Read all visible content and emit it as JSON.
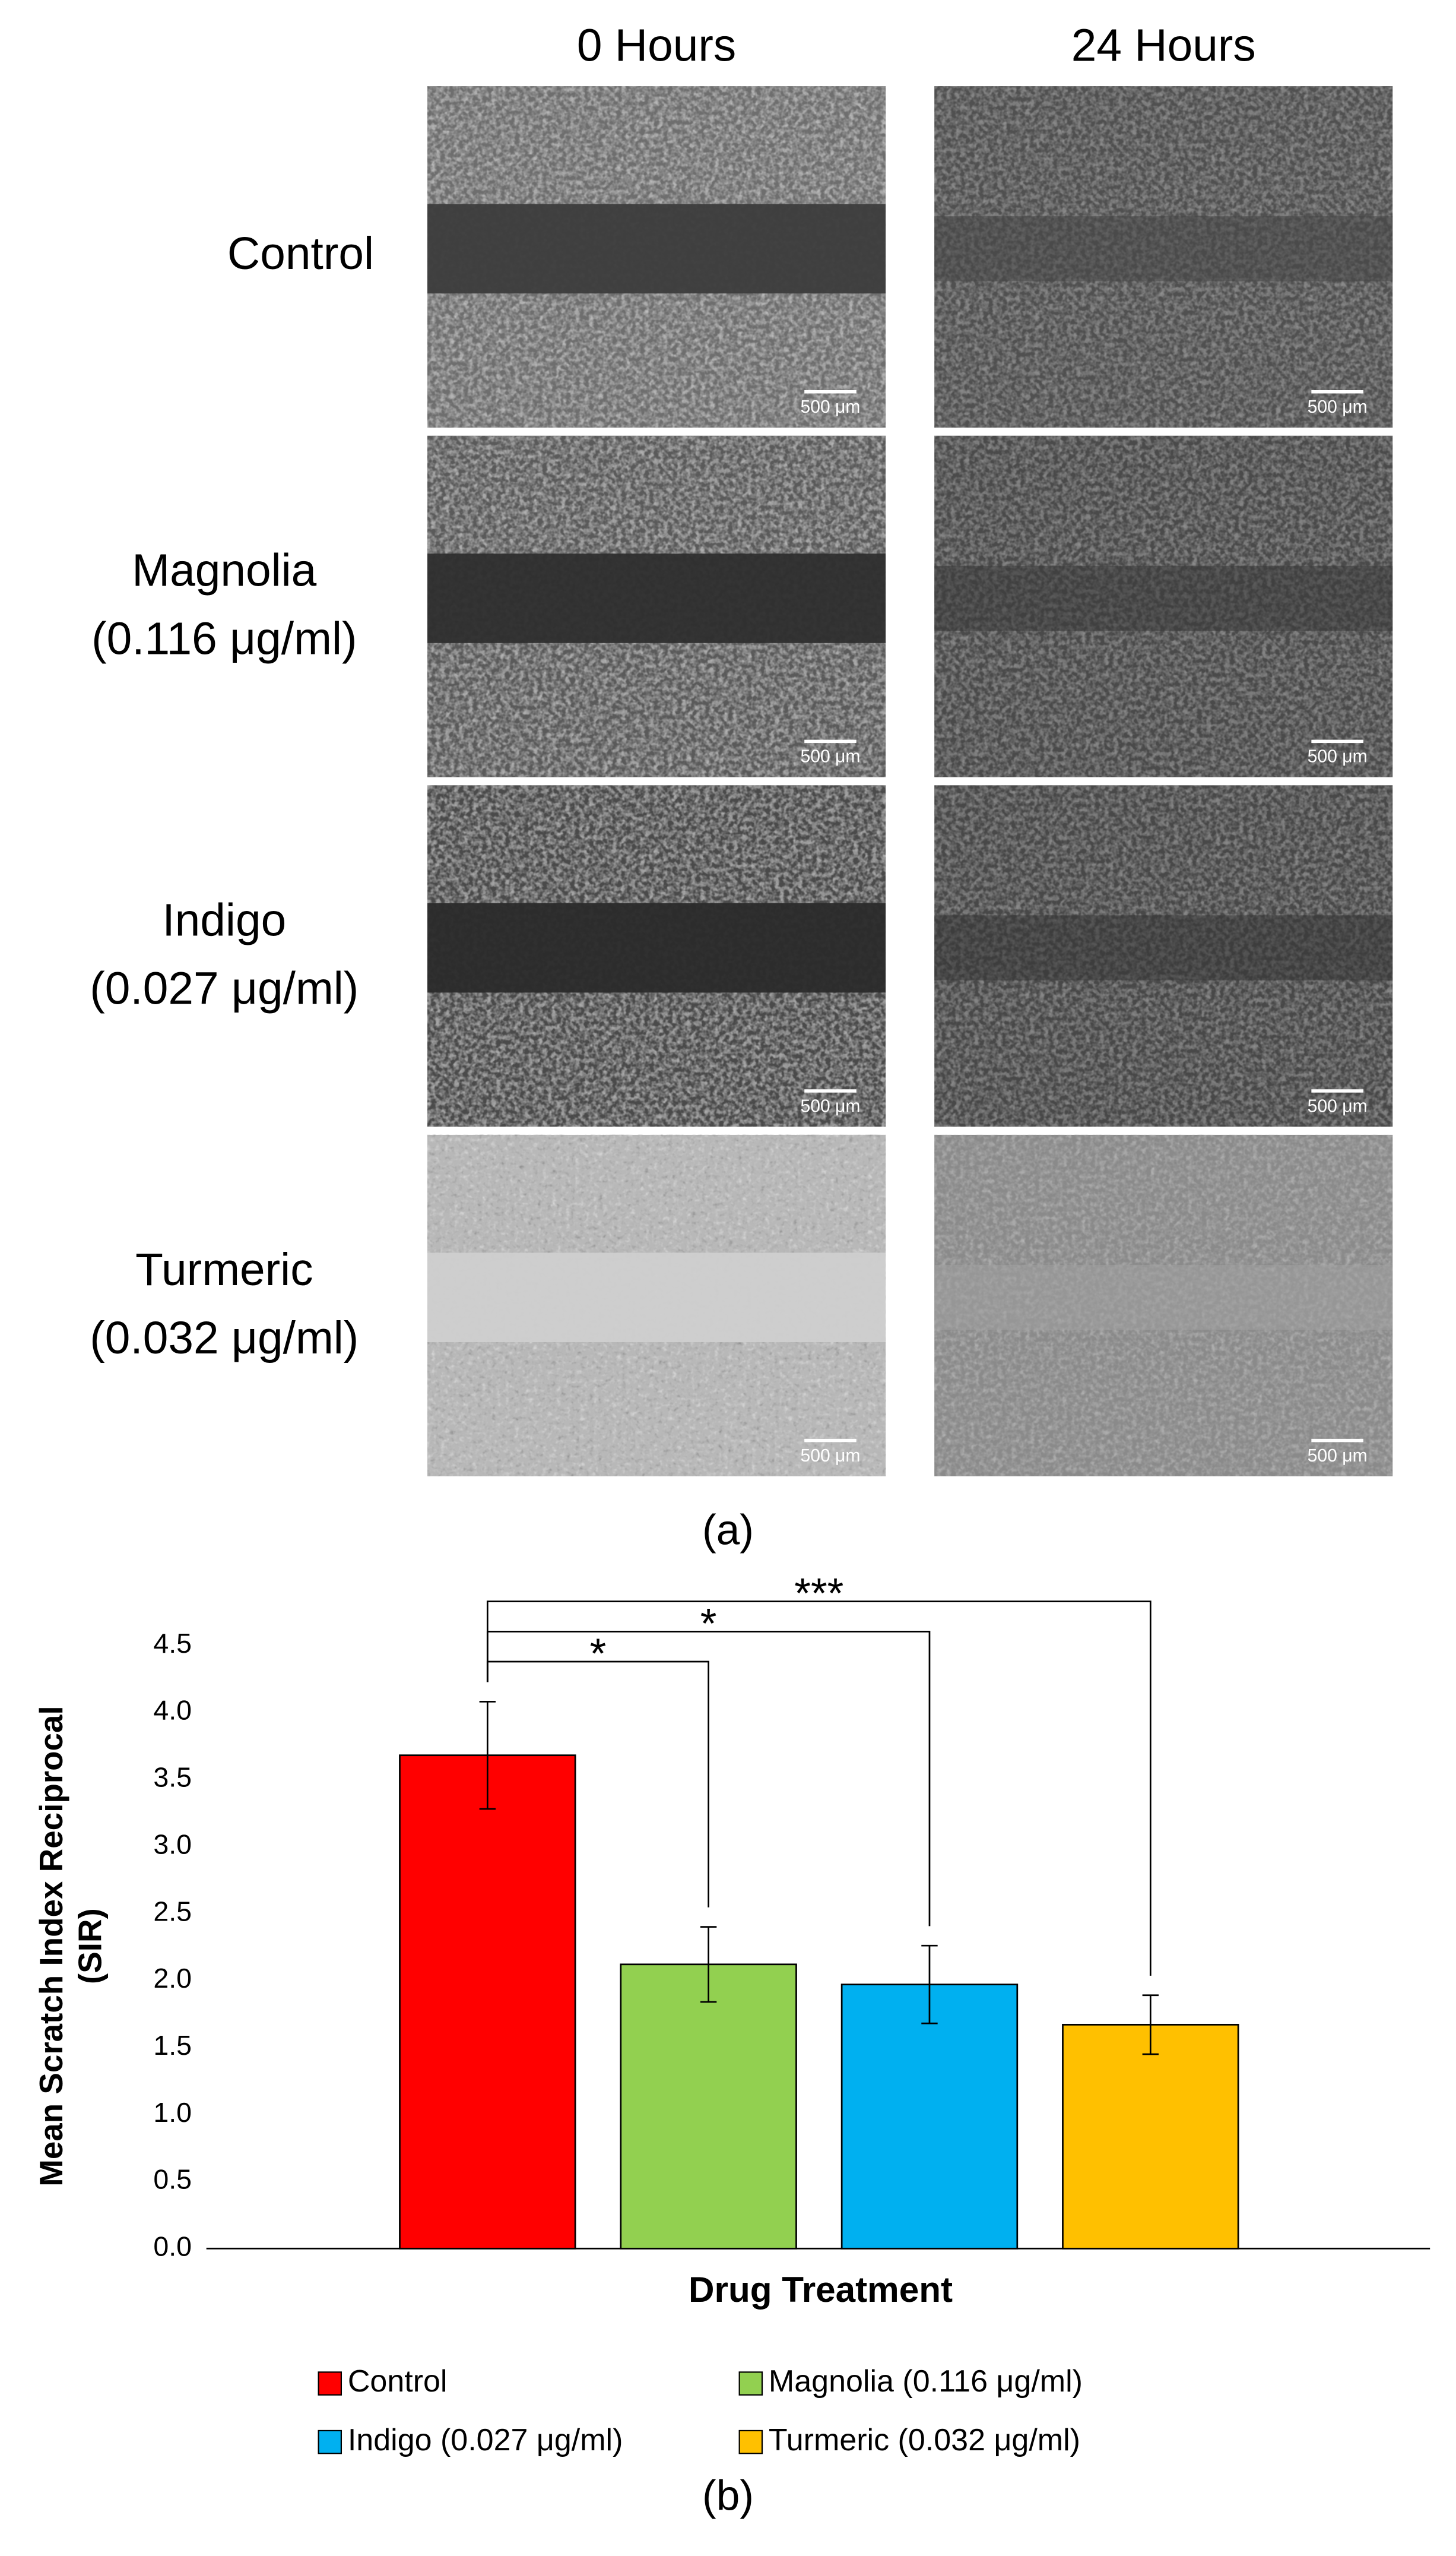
{
  "figure": {
    "panel_a": {
      "label": "(a)",
      "columns": [
        "0 Hours",
        "24 Hours"
      ],
      "rows": [
        {
          "name": "Control",
          "dose": null
        },
        {
          "name": "Magnolia",
          "dose": "(0.116 μg/ml)"
        },
        {
          "name": "Indigo",
          "dose": "(0.027 μg/ml)"
        },
        {
          "name": "Turmeric",
          "dose": "(0.032 μg/ml)"
        }
      ],
      "scale_bar": "500 μm"
    },
    "panel_b_label": "(b)"
  },
  "chart_data": {
    "type": "bar",
    "categories": [
      "Control",
      "Magnolia (0.116 μg/ml)",
      "Indigo (0.027 μg/ml)",
      "Turmeric (0.032 μg/ml)"
    ],
    "values": [
      3.68,
      2.12,
      1.97,
      1.67
    ],
    "errors": [
      0.4,
      0.28,
      0.29,
      0.22
    ],
    "colors": [
      "#ff0000",
      "#92d050",
      "#00b0f0",
      "#ffc000"
    ],
    "significance": [
      null,
      "*",
      "*",
      "***"
    ],
    "xlabel": "Drug Treatment",
    "ylabel": [
      "Mean Scratch Index Reciprocal",
      "(SIR)"
    ],
    "ylim": [
      0,
      4.5
    ],
    "yticks": [
      {
        "value": 0,
        "label": "0.0"
      },
      {
        "value": 0.5,
        "label": "0.5"
      },
      {
        "value": 1,
        "label": "1.0"
      },
      {
        "value": 1.5,
        "label": "1.5"
      },
      {
        "value": 2,
        "label": "2.0"
      },
      {
        "value": 2.5,
        "label": "2.5"
      },
      {
        "value": 3,
        "label": "3.0"
      },
      {
        "value": 3.5,
        "label": "3.5"
      },
      {
        "value": 4,
        "label": "4.0"
      },
      {
        "value": 4.5,
        "label": "4.5"
      }
    ],
    "grid": false,
    "legend": "bottom"
  }
}
